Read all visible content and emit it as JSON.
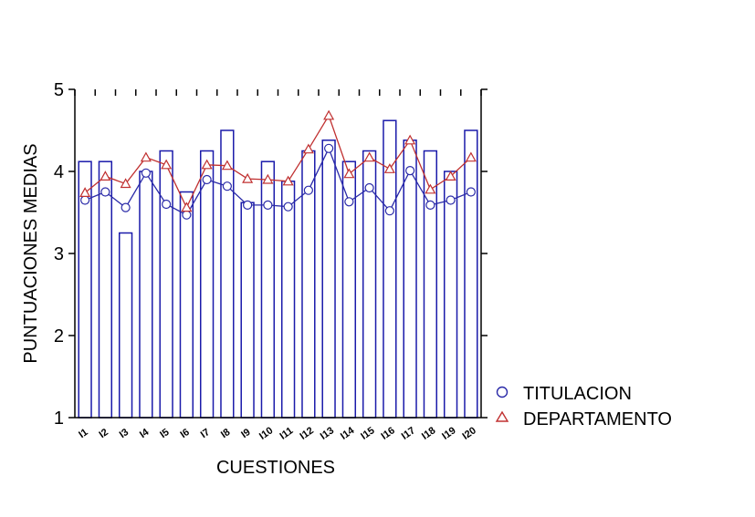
{
  "chart_data": {
    "type": "bar",
    "title": "",
    "xlabel": "CUESTIONES",
    "ylabel": "PUNTUACIONES MEDIAS",
    "ylim": [
      1,
      5
    ],
    "yticks": [
      "1",
      "2",
      "3",
      "4",
      "5"
    ],
    "grid": false,
    "legend_position": "right",
    "categories": [
      "I1",
      "I2",
      "I3",
      "I4",
      "I5",
      "I6",
      "I7",
      "I8",
      "I9",
      "I10",
      "I11",
      "I12",
      "I13",
      "I14",
      "I15",
      "I16",
      "I17",
      "I18",
      "I19",
      "I20"
    ],
    "bars": {
      "values": [
        4.12,
        4.12,
        3.25,
        4.0,
        4.25,
        3.75,
        4.25,
        4.5,
        3.62,
        4.12,
        3.88,
        4.25,
        4.38,
        4.12,
        4.25,
        4.62,
        4.38,
        4.25,
        4.0,
        4.5
      ],
      "color": "#1a1aaa"
    },
    "series": [
      {
        "name": "TITULACION",
        "marker": "circle",
        "color": "#2a2aa8",
        "values": [
          3.65,
          3.75,
          3.56,
          3.98,
          3.6,
          3.47,
          3.9,
          3.82,
          3.59,
          3.59,
          3.57,
          3.77,
          4.28,
          3.63,
          3.8,
          3.52,
          4.01,
          3.59,
          3.65,
          3.75
        ]
      },
      {
        "name": "DEPARTAMENTO",
        "marker": "triangle",
        "color": "#c03030",
        "values": [
          3.74,
          3.94,
          3.85,
          4.17,
          4.08,
          3.56,
          4.08,
          4.07,
          3.91,
          3.9,
          3.88,
          4.27,
          4.68,
          3.97,
          4.17,
          4.03,
          4.38,
          3.78,
          3.94,
          4.17
        ]
      }
    ]
  }
}
